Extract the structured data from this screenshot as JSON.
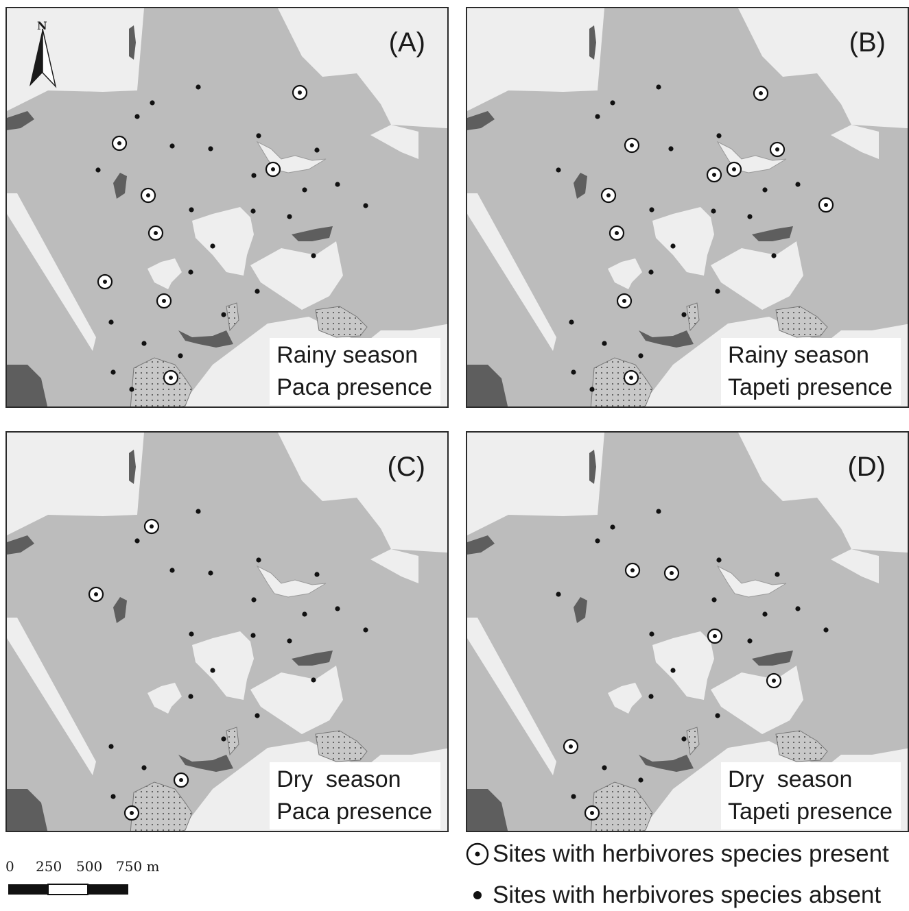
{
  "north_arrow": {
    "label": "N"
  },
  "panels": [
    {
      "id": "A",
      "letter": "(A)",
      "caption_line1": "Rainy season",
      "caption_line2": "Paca presence",
      "present_sites": [
        [
          172,
          207
        ],
        [
          435,
          133
        ],
        [
          396,
          245
        ],
        [
          214,
          283
        ],
        [
          225,
          338
        ],
        [
          151,
          409
        ],
        [
          237,
          437
        ],
        [
          247,
          549
        ]
      ]
    },
    {
      "id": "B",
      "letter": "(B)",
      "caption_line1": "Rainy season",
      "caption_line2": "Tapeti presence",
      "present_sites": [
        [
          1107,
          134
        ],
        [
          919,
          210
        ],
        [
          1131,
          216
        ],
        [
          1068,
          245
        ],
        [
          1039,
          253
        ],
        [
          885,
          283
        ],
        [
          1202,
          297
        ],
        [
          897,
          338
        ],
        [
          908,
          437
        ],
        [
          918,
          549
        ]
      ]
    },
    {
      "id": "C",
      "letter": "(C)",
      "caption_line1": "Dry  season",
      "caption_line2": "Paca presence",
      "present_sites": [
        [
          219,
          766
        ],
        [
          138,
          865
        ],
        [
          262,
          1136
        ],
        [
          190,
          1184
        ]
      ]
    },
    {
      "id": "D",
      "letter": "(D)",
      "caption_line1": "Dry  season",
      "caption_line2": "Tapeti presence",
      "present_sites": [
        [
          920,
          830
        ],
        [
          977,
          834
        ],
        [
          1040,
          926
        ],
        [
          1126,
          991
        ],
        [
          830,
          1087
        ],
        [
          861,
          1184
        ]
      ]
    }
  ],
  "scale_bar": {
    "labels": [
      "0",
      "250",
      "500",
      "750 m"
    ]
  },
  "legend": {
    "present": {
      "symbol": "circle-dot-icon",
      "label": "Sites with herbivores species present"
    },
    "absent": {
      "symbol": "filled-dot-icon",
      "label": "Sites with herbivores species absent"
    }
  },
  "colors": {
    "forest": "#bcbcbc",
    "open_area": "#eeeeee",
    "water": "#5e5e5e",
    "urban_dotted": "#c8c8c8",
    "site_marker": "#111111"
  }
}
